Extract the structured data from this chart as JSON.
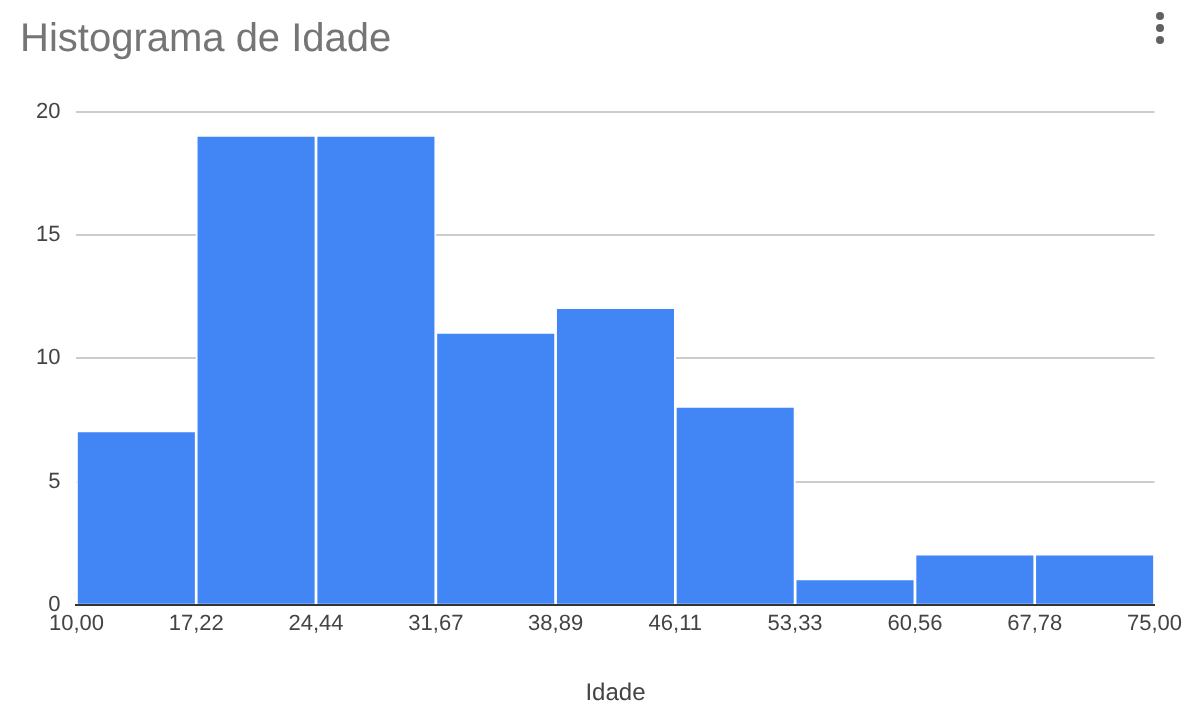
{
  "chart_data": {
    "type": "histogram",
    "title": "Histograma de Idade",
    "xlabel": "Idade",
    "bins": [
      10,
      17.22,
      24.44,
      31.67,
      38.89,
      46.11,
      53.33,
      60.56,
      67.78,
      75
    ],
    "values": [
      7,
      19,
      19,
      11,
      12,
      8,
      1,
      2,
      2
    ],
    "color": "#4285f4",
    "xlim": [
      10,
      75
    ],
    "xticks": [
      {
        "value": 10,
        "label": "10,00"
      },
      {
        "value": 17.22,
        "label": "17,22"
      },
      {
        "value": 24.44,
        "label": "24,44"
      },
      {
        "value": 31.67,
        "label": "31,67"
      },
      {
        "value": 38.89,
        "label": "38,89"
      },
      {
        "value": 46.11,
        "label": "46,11"
      },
      {
        "value": 53.33,
        "label": "53,33"
      },
      {
        "value": 60.56,
        "label": "60,56"
      },
      {
        "value": 67.78,
        "label": "67,78"
      },
      {
        "value": 75,
        "label": "75,00"
      }
    ],
    "ylim": [
      0,
      20
    ],
    "yticks": [
      0,
      5,
      10,
      15,
      20
    ],
    "grid": "y",
    "legend": false
  }
}
